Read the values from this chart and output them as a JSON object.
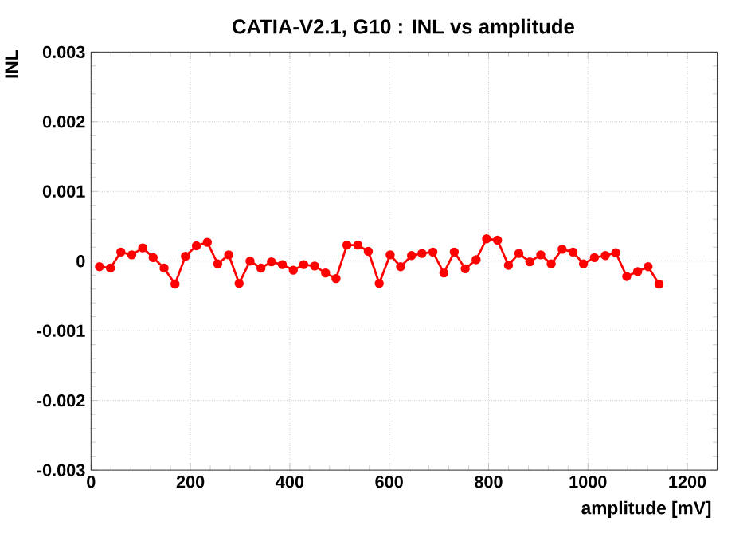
{
  "chart_data": {
    "type": "line",
    "title": "CATIA-V2.1, G10 : INL vs amplitude",
    "xlabel": "amplitude [mV]",
    "ylabel": "INL",
    "x": [
      17,
      39,
      60,
      82,
      104,
      125,
      147,
      169,
      190,
      212,
      234,
      255,
      277,
      298,
      320,
      342,
      363,
      385,
      407,
      428,
      450,
      472,
      493,
      515,
      537,
      558,
      580,
      602,
      623,
      645,
      666,
      688,
      710,
      731,
      753,
      775,
      796,
      818,
      840,
      861,
      883,
      905,
      926,
      948,
      970,
      991,
      1013,
      1035,
      1056,
      1078,
      1100,
      1121,
      1143
    ],
    "series": [
      {
        "color": "#ff0000",
        "values": [
          -8e-05,
          -0.0001,
          0.00013,
          9e-05,
          0.00019,
          5e-05,
          -0.0001,
          -0.00033,
          7e-05,
          0.00022,
          0.00027,
          -4e-05,
          9e-05,
          -0.00032,
          0,
          -0.0001,
          -1e-05,
          -5e-05,
          -0.00013,
          -5e-05,
          -7e-05,
          -0.00017,
          -0.00025,
          0.00023,
          0.00023,
          0.00014,
          -0.00032,
          9e-05,
          -8e-05,
          8e-05,
          0.00011,
          0.00013,
          -0.00017,
          0.00013,
          -0.00011,
          2e-05,
          0.00032,
          0.0003,
          -6e-05,
          0.00011,
          -1e-05,
          9e-05,
          -4e-05,
          0.00017,
          0.00013,
          -4e-05,
          5e-05,
          8e-05,
          0.00012,
          -0.00022,
          -0.00015,
          -8e-05,
          -0.00033
        ]
      }
    ],
    "xlim": [
      0,
      1260
    ],
    "ylim": [
      -0.003,
      0.003
    ],
    "xticks": [
      0,
      200,
      400,
      600,
      800,
      1000,
      1200
    ],
    "yticks": [
      -0.003,
      -0.002,
      -0.001,
      0,
      0.001,
      0.002,
      0.003
    ],
    "grid": true,
    "marker": "circle",
    "line_style": "solid"
  }
}
